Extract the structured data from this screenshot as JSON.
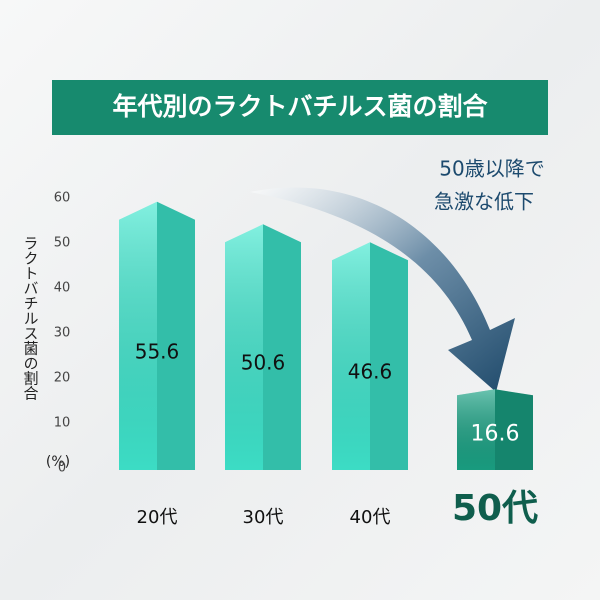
{
  "chart_data": {
    "type": "bar",
    "title": "年代別のラクトバチルス菌の割合",
    "ylabel": "ラクトバチルス菌の割合",
    "y_unit": "(%)",
    "annotation": [
      "50歳以降で",
      "急激な低下"
    ],
    "categories": [
      "20代",
      "30代",
      "40代",
      "50代"
    ],
    "values": [
      55.6,
      50.6,
      46.6,
      16.6
    ],
    "colors": [
      "#3fe8cf",
      "#3fe8cf",
      "#3fe8cf",
      "#1aa385"
    ],
    "ylim": [
      0,
      60
    ],
    "yticks": [
      0,
      10,
      20,
      30,
      40,
      50,
      60
    ]
  }
}
